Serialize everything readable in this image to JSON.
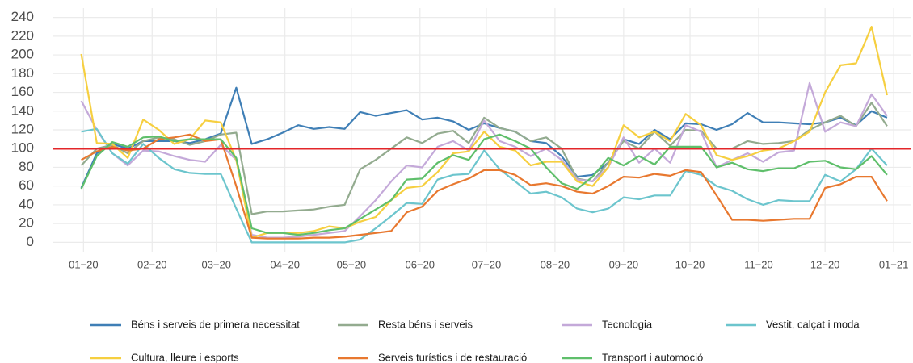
{
  "chart_data": {
    "type": "line",
    "x": [
      -1,
      6,
      13,
      20,
      27,
      34,
      41,
      48,
      55,
      62,
      69,
      76,
      83,
      90,
      97,
      104,
      111,
      118,
      125,
      132,
      139,
      146,
      153,
      160,
      167,
      174,
      181,
      188,
      195,
      202,
      209,
      216,
      223,
      230,
      237,
      244,
      251,
      258,
      265,
      272,
      279,
      286,
      293,
      300,
      307,
      314,
      321,
      328,
      335,
      342,
      349,
      356,
      363
    ],
    "xlim": [
      -14,
      374
    ],
    "xticks": [
      {
        "value": 0,
        "label": "01−20"
      },
      {
        "value": 31,
        "label": "02−20"
      },
      {
        "value": 60,
        "label": "03−20"
      },
      {
        "value": 91,
        "label": "04−20"
      },
      {
        "value": 121,
        "label": "05−20"
      },
      {
        "value": 152,
        "label": "06−20"
      },
      {
        "value": 182,
        "label": "07−20"
      },
      {
        "value": 213,
        "label": "08−20"
      },
      {
        "value": 244,
        "label": "09−20"
      },
      {
        "value": 274,
        "label": "10−20"
      },
      {
        "value": 305,
        "label": "11−20"
      },
      {
        "value": 335,
        "label": "12−20"
      },
      {
        "value": 366,
        "label": "01−21"
      }
    ],
    "ylim": [
      -10,
      250
    ],
    "yticks": [
      0,
      20,
      40,
      60,
      80,
      100,
      120,
      140,
      160,
      180,
      200,
      220,
      240
    ],
    "grid": true,
    "reference_line": {
      "value": 100,
      "color": "#e3262a"
    },
    "legend": "bottom",
    "series": [
      {
        "name": "Béns i serveis de primera necessitat",
        "color": "#3f7fb6",
        "values": [
          58,
          95,
          105,
          100,
          108,
          108,
          108,
          106,
          110,
          116,
          165,
          105,
          110,
          117,
          125,
          121,
          123,
          121,
          139,
          135,
          138,
          141,
          131,
          133,
          129,
          120,
          127,
          122,
          118,
          108,
          106,
          92,
          70,
          72,
          85,
          110,
          105,
          120,
          110,
          127,
          126,
          120,
          126,
          138,
          128,
          128,
          127,
          126,
          128,
          133,
          125,
          140,
          133
        ]
      },
      {
        "name": "Resta béns i serveis",
        "color": "#93ab8f",
        "values": [
          82,
          100,
          104,
          95,
          108,
          112,
          110,
          104,
          108,
          115,
          117,
          30,
          33,
          33,
          34,
          35,
          38,
          40,
          78,
          88,
          100,
          112,
          106,
          116,
          119,
          106,
          133,
          122,
          118,
          108,
          112,
          100,
          68,
          65,
          85,
          108,
          100,
          118,
          103,
          120,
          119,
          100,
          100,
          108,
          105,
          106,
          108,
          120,
          128,
          135,
          124,
          149,
          124
        ]
      },
      {
        "name": "Tecnologia",
        "color": "#c4a9d9",
        "values": [
          151,
          120,
          95,
          82,
          98,
          97,
          92,
          88,
          86,
          104,
          88,
          8,
          5,
          5,
          6,
          8,
          10,
          12,
          28,
          45,
          65,
          82,
          80,
          102,
          108,
          98,
          130,
          108,
          102,
          92,
          100,
          88,
          67,
          65,
          80,
          112,
          85,
          100,
          85,
          125,
          118,
          80,
          88,
          95,
          86,
          96,
          98,
          170,
          118,
          128,
          124,
          158,
          135
        ]
      },
      {
        "name": "Vestit, calçat i moda",
        "color": "#6cc5cd",
        "values": [
          118,
          121,
          95,
          84,
          105,
          90,
          78,
          74,
          73,
          73,
          36,
          0,
          0,
          0,
          0,
          0,
          0,
          0,
          3,
          15,
          28,
          42,
          41,
          67,
          72,
          73,
          98,
          78,
          65,
          52,
          54,
          48,
          36,
          32,
          36,
          48,
          46,
          50,
          50,
          76,
          72,
          60,
          55,
          46,
          40,
          45,
          44,
          44,
          72,
          65,
          78,
          100,
          82
        ]
      },
      {
        "name": "Cultura, lleure i esports",
        "color": "#f6cf40",
        "values": [
          201,
          106,
          105,
          90,
          131,
          120,
          105,
          110,
          130,
          128,
          88,
          5,
          10,
          10,
          10,
          12,
          17,
          15,
          22,
          27,
          45,
          58,
          60,
          75,
          95,
          97,
          118,
          102,
          98,
          82,
          86,
          86,
          65,
          60,
          80,
          125,
          112,
          118,
          108,
          137,
          125,
          93,
          88,
          92,
          98,
          100,
          108,
          118,
          160,
          189,
          191,
          230,
          157
        ]
      },
      {
        "name": "Serveis turístics i de restauració",
        "color": "#e8782f",
        "values": [
          88,
          97,
          102,
          98,
          100,
          110,
          112,
          115,
          108,
          110,
          60,
          5,
          4,
          4,
          4,
          5,
          5,
          6,
          8,
          10,
          12,
          32,
          38,
          55,
          62,
          68,
          77,
          77,
          72,
          61,
          63,
          60,
          54,
          52,
          60,
          70,
          69,
          73,
          71,
          77,
          75,
          50,
          24,
          24,
          23,
          24,
          25,
          25,
          58,
          62,
          70,
          70,
          44
        ]
      },
      {
        "name": "Transport i automoció",
        "color": "#5fbf6b",
        "values": [
          57,
          92,
          107,
          102,
          112,
          113,
          108,
          110,
          110,
          110,
          90,
          15,
          10,
          10,
          8,
          10,
          13,
          15,
          25,
          35,
          45,
          67,
          68,
          85,
          93,
          88,
          110,
          115,
          108,
          100,
          80,
          63,
          57,
          70,
          90,
          82,
          92,
          83,
          102,
          102,
          102,
          80,
          85,
          78,
          76,
          79,
          79,
          86,
          87,
          80,
          78,
          92,
          72
        ]
      }
    ]
  }
}
